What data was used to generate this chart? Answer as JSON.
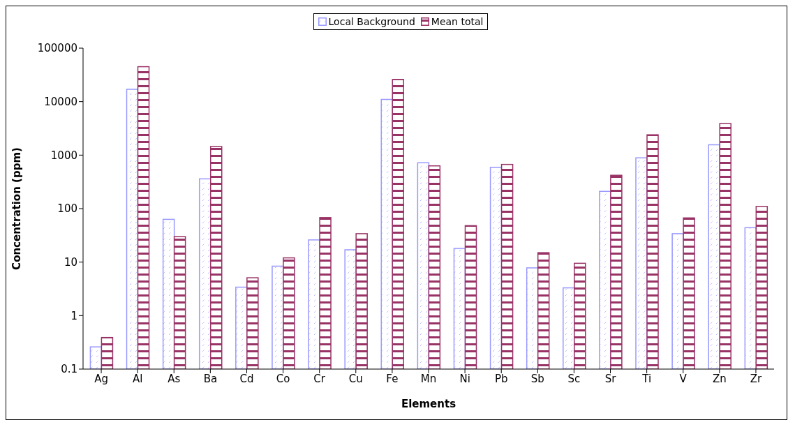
{
  "chart_data": {
    "type": "bar",
    "xlabel": "Elements",
    "ylabel": "Concentration (ppm)",
    "categories": [
      "Ag",
      "Al",
      "As",
      "Ba",
      "Cd",
      "Co",
      "Cr",
      "Cu",
      "Fe",
      "Mn",
      "Ni",
      "Pb",
      "Sb",
      "Sc",
      "Sr",
      "Ti",
      "V",
      "Zn",
      "Zr"
    ],
    "series": [
      {
        "name": "Local Background",
        "color": "#9999ff",
        "values": [
          0.26,
          17000,
          63,
          360,
          3.4,
          8.4,
          26,
          17,
          11000,
          720,
          18,
          590,
          7.8,
          3.3,
          210,
          890,
          34,
          1560,
          44
        ]
      },
      {
        "name": "Mean total",
        "color": "#993366",
        "values": [
          0.39,
          45000,
          30,
          1450,
          5.1,
          12,
          68,
          34,
          26000,
          630,
          48,
          670,
          15,
          9.5,
          420,
          2400,
          67,
          3900,
          110
        ]
      }
    ],
    "log": "y",
    "ylim": [
      0.1,
      100000
    ],
    "yticks": [
      0.1,
      1,
      10,
      100,
      1000,
      10000,
      100000
    ],
    "legend": "top"
  }
}
